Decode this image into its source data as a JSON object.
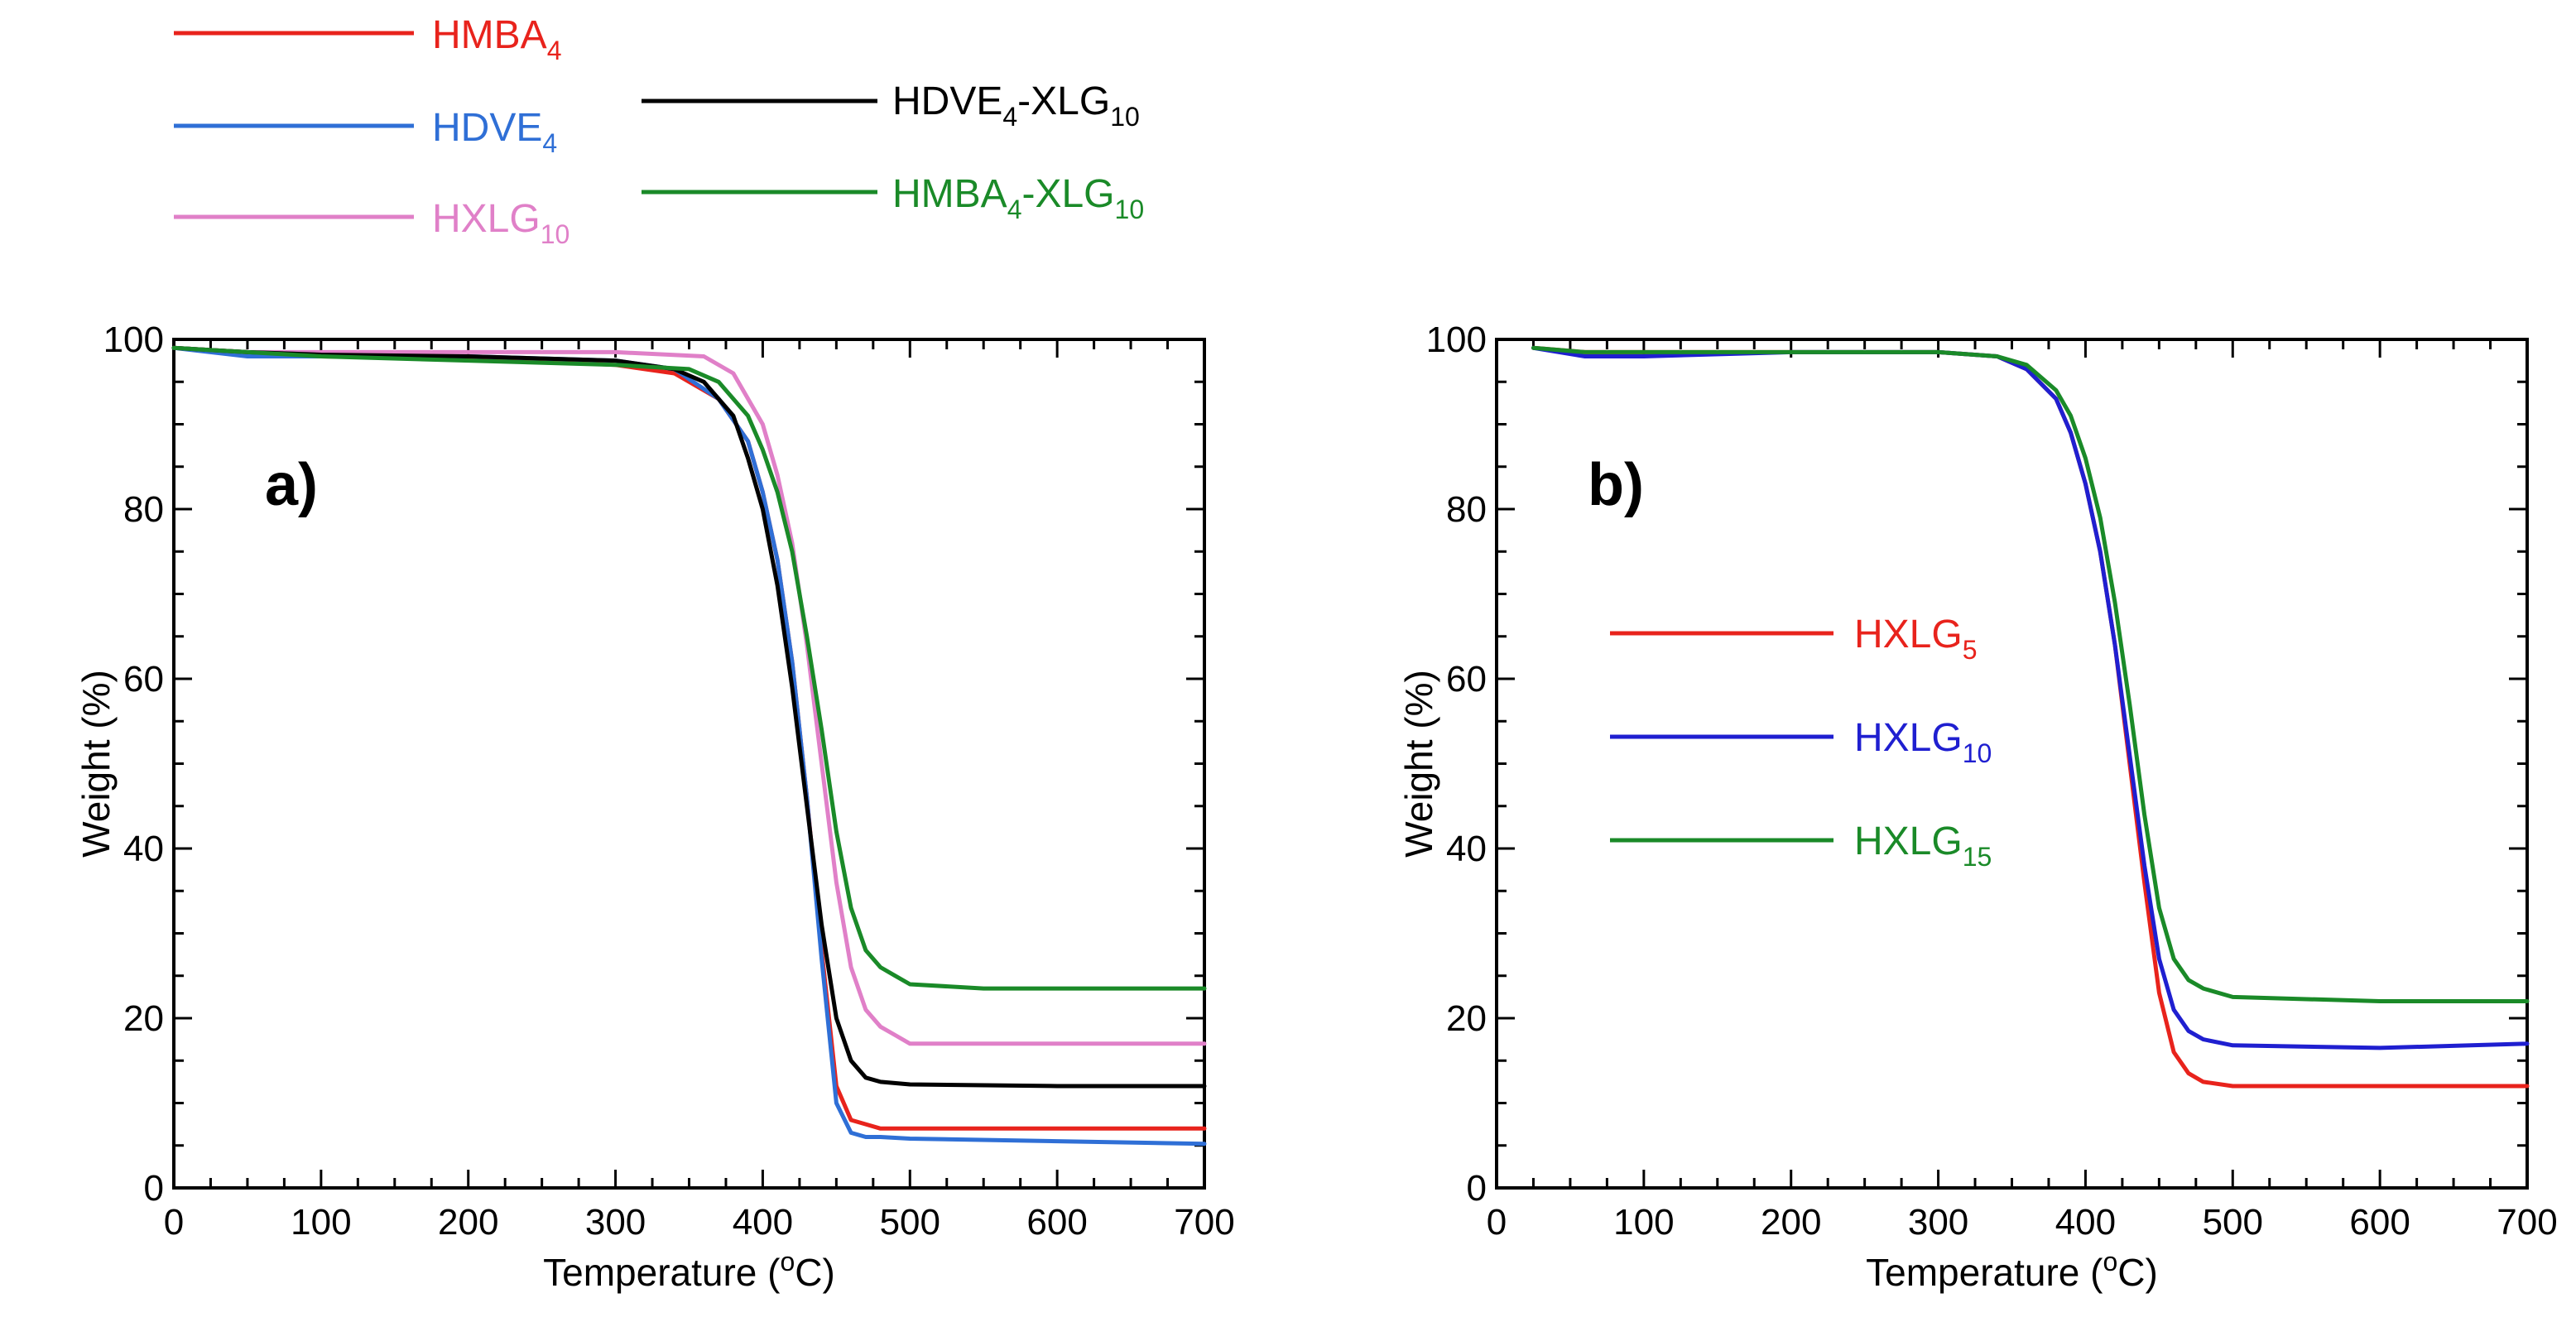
{
  "chart_data": [
    {
      "panel": "a)",
      "type": "line",
      "xlabel": "Temperature (",
      "xlabel_sup": "o",
      "xlabel_tail": "C)",
      "ylabel": "Weight (%)",
      "xlim": [
        0,
        700
      ],
      "ylim": [
        0,
        100
      ],
      "xticks": [
        "0",
        "100",
        "200",
        "300",
        "400",
        "500",
        "600",
        "700"
      ],
      "yticks": [
        "0",
        "20",
        "40",
        "60",
        "80",
        "100"
      ],
      "series": [
        {
          "name": "HMBA",
          "sub": "4",
          "suffix": "",
          "sub2": "",
          "color": "#e8231c",
          "x": [
            0,
            50,
            100,
            200,
            300,
            340,
            370,
            390,
            400,
            410,
            420,
            430,
            440,
            450,
            460,
            470,
            480,
            500,
            600,
            700
          ],
          "y": [
            99,
            98.5,
            98,
            97.8,
            97,
            96,
            93,
            88,
            82,
            74,
            62,
            46,
            28,
            12,
            8,
            7.5,
            7,
            7,
            7,
            7
          ]
        },
        {
          "name": "HDVE",
          "sub": "4",
          "suffix": "",
          "sub2": "",
          "color": "#2f6fd6",
          "x": [
            0,
            50,
            100,
            200,
            300,
            340,
            370,
            390,
            400,
            410,
            420,
            430,
            440,
            450,
            460,
            470,
            480,
            500,
            600,
            700
          ],
          "y": [
            99,
            98,
            98,
            98,
            97.5,
            96.5,
            93,
            88,
            82,
            74,
            62,
            46,
            27,
            10,
            6.5,
            6,
            6,
            5.8,
            5.5,
            5.2
          ]
        },
        {
          "name": "HXLG",
          "sub": "10",
          "suffix": "",
          "sub2": "",
          "color": "#e080c8",
          "x": [
            0,
            50,
            100,
            200,
            300,
            360,
            380,
            400,
            410,
            420,
            430,
            440,
            450,
            460,
            470,
            480,
            490,
            500,
            550,
            600,
            700
          ],
          "y": [
            99,
            98.5,
            98.5,
            98.5,
            98.5,
            98,
            96,
            90,
            84,
            76,
            64,
            50,
            36,
            26,
            21,
            19,
            18,
            17,
            17,
            17,
            17
          ]
        },
        {
          "name": "HDVE",
          "sub": "4",
          "suffix": "-XLG",
          "sub2": "10",
          "color": "#000000",
          "x": [
            0,
            50,
            100,
            200,
            300,
            340,
            360,
            380,
            390,
            400,
            410,
            420,
            430,
            440,
            450,
            460,
            470,
            480,
            500,
            600,
            700
          ],
          "y": [
            99,
            98.5,
            98.2,
            98,
            97.5,
            96.5,
            95,
            91,
            86,
            80,
            71,
            59,
            45,
            31,
            20,
            15,
            13,
            12.5,
            12.2,
            12,
            12
          ]
        },
        {
          "name": "HMBA",
          "sub": "4",
          "suffix": "-XLG",
          "sub2": "10",
          "color": "#1a8a28",
          "x": [
            0,
            50,
            100,
            200,
            300,
            350,
            370,
            390,
            400,
            410,
            420,
            430,
            440,
            450,
            460,
            470,
            480,
            490,
            500,
            550,
            600,
            700
          ],
          "y": [
            99,
            98.5,
            98,
            97.5,
            97,
            96.5,
            95,
            91,
            87,
            82,
            75,
            65,
            54,
            42,
            33,
            28,
            26,
            25,
            24,
            23.5,
            23.5,
            23.5
          ]
        }
      ]
    },
    {
      "panel": "b)",
      "type": "line",
      "xlabel": "Temperature (",
      "xlabel_sup": "o",
      "xlabel_tail": "C)",
      "ylabel": "Weight (%)",
      "xlim": [
        0,
        700
      ],
      "ylim": [
        0,
        100
      ],
      "xticks": [
        "0",
        "100",
        "200",
        "300",
        "400",
        "500",
        "600",
        "700"
      ],
      "yticks": [
        "0",
        "20",
        "40",
        "60",
        "80",
        "100"
      ],
      "series": [
        {
          "name": "HXLG",
          "sub": "5",
          "suffix": "",
          "sub2": "",
          "color": "#e8231c",
          "x": [
            25,
            60,
            100,
            200,
            300,
            340,
            360,
            380,
            390,
            400,
            410,
            420,
            430,
            440,
            450,
            460,
            470,
            480,
            500,
            600,
            700
          ],
          "y": [
            99,
            98.5,
            98.5,
            98.5,
            98.5,
            98,
            96.5,
            93,
            89,
            83,
            75,
            64,
            50,
            36,
            23,
            16,
            13.5,
            12.5,
            12,
            12,
            12
          ]
        },
        {
          "name": "HXLG",
          "sub": "10",
          "suffix": "",
          "sub2": "",
          "color": "#1f1fd0",
          "x": [
            25,
            60,
            100,
            200,
            300,
            340,
            360,
            380,
            390,
            400,
            410,
            420,
            430,
            440,
            450,
            460,
            470,
            480,
            500,
            600,
            700
          ],
          "y": [
            99,
            98,
            98,
            98.5,
            98.5,
            98,
            96.5,
            93,
            89,
            83,
            75,
            64,
            51,
            38,
            27,
            21,
            18.5,
            17.5,
            16.8,
            16.5,
            17
          ]
        },
        {
          "name": "HXLG",
          "sub": "15",
          "suffix": "",
          "sub2": "",
          "color": "#1a8a28",
          "x": [
            25,
            60,
            100,
            200,
            300,
            340,
            360,
            380,
            390,
            400,
            410,
            420,
            430,
            440,
            450,
            460,
            470,
            480,
            500,
            600,
            700
          ],
          "y": [
            99,
            98.5,
            98.5,
            98.5,
            98.5,
            98,
            97,
            94,
            91,
            86,
            79,
            69,
            57,
            44,
            33,
            27,
            24.5,
            23.5,
            22.5,
            22,
            22
          ]
        }
      ]
    }
  ]
}
